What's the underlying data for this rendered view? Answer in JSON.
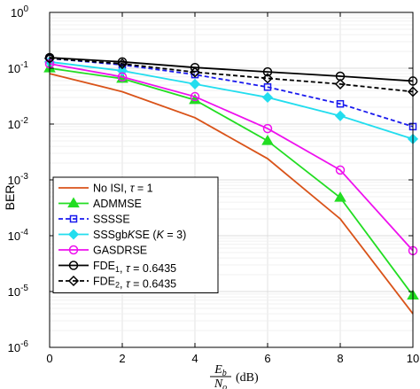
{
  "chart_data": {
    "type": "line",
    "x": [
      0,
      2,
      4,
      6,
      8,
      10
    ],
    "xlim": [
      0,
      10
    ],
    "ylim": [
      1e-06,
      1
    ],
    "yscale": "log",
    "grid": true,
    "legend_position": "lower-left",
    "ylabel": "BER",
    "xlabel": {
      "num": "E",
      "num_sub": "b",
      "den": "N",
      "den_sub": "o",
      "unit": "(dB)"
    },
    "xticks": [
      "0",
      "2",
      "4",
      "6",
      "8",
      "10"
    ],
    "yticks": [
      {
        "base": "10",
        "exp": "-6"
      },
      {
        "base": "10",
        "exp": "-5"
      },
      {
        "base": "10",
        "exp": "-4"
      },
      {
        "base": "10",
        "exp": "-3"
      },
      {
        "base": "10",
        "exp": "-2"
      },
      {
        "base": "10",
        "exp": "-1"
      },
      {
        "base": "10",
        "exp": "0"
      }
    ],
    "series": [
      {
        "name": "No ISI, τ = 1",
        "color": "#d95319",
        "dash": false,
        "marker": "none",
        "values": [
          0.08,
          0.038,
          0.013,
          0.0024,
          0.0002,
          4e-06
        ]
      },
      {
        "name": "ADMMSE",
        "color": "#22dd22",
        "dash": false,
        "marker": "triangle",
        "values": [
          0.1,
          0.065,
          0.027,
          0.005,
          0.00048,
          8.5e-06
        ]
      },
      {
        "name": "SSSSE",
        "color": "#1a1aee",
        "dash": true,
        "marker": "square",
        "values": [
          0.15,
          0.115,
          0.077,
          0.046,
          0.023,
          0.009
        ]
      },
      {
        "name": "SSSgbKSE (K = 3)",
        "color": "#22ddee",
        "dash": false,
        "marker": "diamond",
        "values": [
          0.13,
          0.09,
          0.052,
          0.03,
          0.014,
          0.0054
        ]
      },
      {
        "name": "GASDRSE",
        "color": "#ee11ee",
        "dash": false,
        "marker": "circle",
        "values": [
          0.12,
          0.07,
          0.031,
          0.0083,
          0.0015,
          5.4e-05
        ]
      },
      {
        "name": "FDE1, τ = 0.6435",
        "color": "#000000",
        "dash": false,
        "marker": "circle",
        "values": [
          0.155,
          0.13,
          0.103,
          0.086,
          0.072,
          0.059
        ]
      },
      {
        "name": "FDE2, τ = 0.6435",
        "color": "#000000",
        "dash": true,
        "marker": "diamond",
        "values": [
          0.15,
          0.12,
          0.085,
          0.066,
          0.052,
          0.038
        ]
      }
    ],
    "legend": [
      {
        "parts": [
          {
            "t": "No ISI, "
          },
          {
            "t": "τ",
            "i": true
          },
          {
            "t": " = 1"
          }
        ]
      },
      {
        "parts": [
          {
            "t": "ADMMSE"
          }
        ]
      },
      {
        "parts": [
          {
            "t": "SSSSE"
          }
        ]
      },
      {
        "parts": [
          {
            "t": "SSSgb"
          },
          {
            "t": "K",
            "i": true
          },
          {
            "t": "SE ("
          },
          {
            "t": "K",
            "i": true
          },
          {
            "t": " = 3)"
          }
        ]
      },
      {
        "parts": [
          {
            "t": "GASDRSE"
          }
        ]
      },
      {
        "parts": [
          {
            "t": "FDE"
          },
          {
            "t": "1",
            "sub": true
          },
          {
            "t": ", "
          },
          {
            "t": "τ",
            "i": true
          },
          {
            "t": " = 0.6435"
          }
        ]
      },
      {
        "parts": [
          {
            "t": "FDE"
          },
          {
            "t": "2",
            "sub": true
          },
          {
            "t": ", "
          },
          {
            "t": "τ",
            "i": true
          },
          {
            "t": " = 0.6435"
          }
        ]
      }
    ]
  }
}
